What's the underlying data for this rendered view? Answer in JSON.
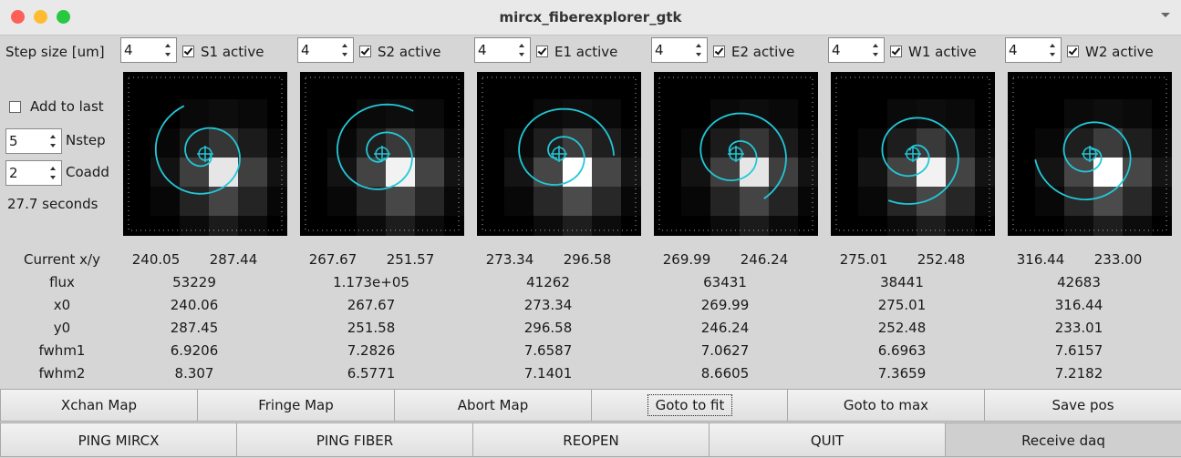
{
  "window": {
    "title": "mircx_fiberexplorer_gtk"
  },
  "controls": {
    "step_label": "Step size [um]",
    "add_to_last": "Add to last",
    "nstep": {
      "value": "5",
      "label": "Nstep"
    },
    "coadd": {
      "value": "2",
      "label": "Coadd"
    },
    "duration": "27.7 seconds"
  },
  "row_labels": [
    "Current x/y",
    "flux",
    "x0",
    "y0",
    "fwhm1",
    "fwhm2"
  ],
  "telescopes": [
    {
      "step": "4",
      "active_label": "S1 active",
      "current_x": "240.05",
      "current_y": "287.44",
      "flux": "53229",
      "x0": "240.06",
      "y0": "287.45",
      "fwhm1": "6.9206",
      "fwhm2": "8.307"
    },
    {
      "step": "4",
      "active_label": "S2 active",
      "current_x": "267.67",
      "current_y": "251.57",
      "flux": "1.173e+05",
      "x0": "267.67",
      "y0": "251.58",
      "fwhm1": "7.2826",
      "fwhm2": "6.5771"
    },
    {
      "step": "4",
      "active_label": "E1 active",
      "current_x": "273.34",
      "current_y": "296.58",
      "flux": "41262",
      "x0": "273.34",
      "y0": "296.58",
      "fwhm1": "7.6587",
      "fwhm2": "7.1401"
    },
    {
      "step": "4",
      "active_label": "E2 active",
      "current_x": "269.99",
      "current_y": "246.24",
      "flux": "63431",
      "x0": "269.99",
      "y0": "246.24",
      "fwhm1": "7.0627",
      "fwhm2": "8.6605"
    },
    {
      "step": "4",
      "active_label": "W1 active",
      "current_x": "275.01",
      "current_y": "252.48",
      "flux": "38441",
      "x0": "275.01",
      "y0": "252.48",
      "fwhm1": "6.6963",
      "fwhm2": "7.3659"
    },
    {
      "step": "4",
      "active_label": "W2 active",
      "current_x": "316.44",
      "current_y": "233.00",
      "flux": "42683",
      "x0": "316.44",
      "y0": "233.01",
      "fwhm1": "7.6157",
      "fwhm2": "7.2182"
    }
  ],
  "buttons_row1": [
    "Xchan Map",
    "Fringe Map",
    "Abort Map",
    "Goto to fit",
    "Goto to max",
    "Save pos"
  ],
  "buttons_row2": [
    "PING MIRCX",
    "PING FIBER",
    "REOPEN",
    "QUIT",
    "Receive daq"
  ]
}
